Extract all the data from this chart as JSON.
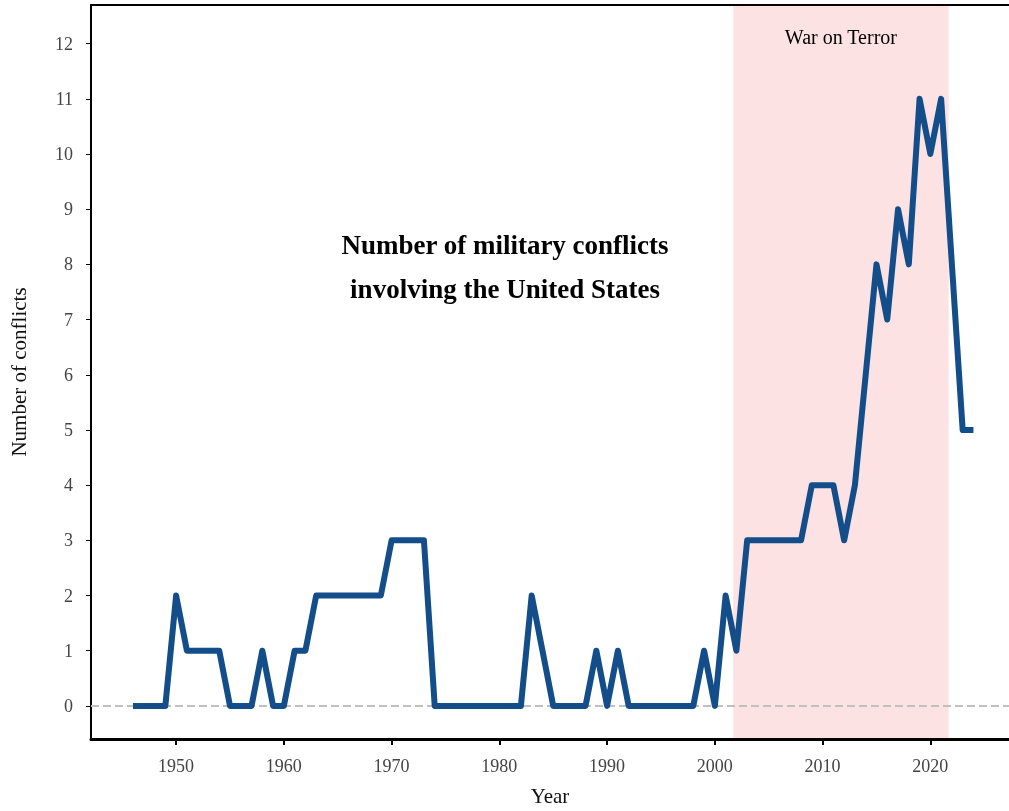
{
  "chart_data": {
    "type": "line",
    "title": "Number of military conflicts\ninvolving the United States",
    "xlabel": "Year",
    "ylabel": "Number of conflicts",
    "x": [
      1946,
      1947,
      1948,
      1949,
      1950,
      1951,
      1952,
      1953,
      1954,
      1955,
      1956,
      1957,
      1958,
      1959,
      1960,
      1961,
      1962,
      1963,
      1964,
      1965,
      1966,
      1967,
      1968,
      1969,
      1970,
      1971,
      1972,
      1973,
      1974,
      1975,
      1976,
      1977,
      1978,
      1979,
      1980,
      1981,
      1982,
      1983,
      1984,
      1985,
      1986,
      1987,
      1988,
      1989,
      1990,
      1991,
      1992,
      1993,
      1994,
      1995,
      1996,
      1997,
      1998,
      1999,
      2000,
      2001,
      2002,
      2003,
      2004,
      2005,
      2006,
      2007,
      2008,
      2009,
      2010,
      2011,
      2012,
      2013,
      2014,
      2015,
      2016,
      2017,
      2018,
      2019,
      2020,
      2021,
      2022,
      2023,
      2024
    ],
    "series": [
      {
        "color": "#134e8a",
        "values": [
          0,
          0,
          0,
          0,
          2,
          1,
          1,
          1,
          1,
          0,
          0,
          0,
          1,
          0,
          0,
          1,
          1,
          2,
          2,
          2,
          2,
          2,
          2,
          2,
          3,
          3,
          3,
          3,
          0,
          0,
          0,
          0,
          0,
          0,
          0,
          0,
          0,
          2,
          1,
          0,
          0,
          0,
          0,
          1,
          0,
          1,
          0,
          0,
          0,
          0,
          0,
          0,
          0,
          1,
          0,
          2,
          1,
          3,
          3,
          3,
          3,
          3,
          3,
          4,
          4,
          4,
          3,
          4,
          6,
          8,
          7,
          9,
          8,
          11,
          10,
          11,
          8,
          5,
          5
        ]
      }
    ],
    "xlim": [
      1942.1,
      2027.3
    ],
    "ylim": [
      -0.6,
      12.7
    ],
    "xticks": [
      1950,
      1960,
      1970,
      1980,
      1990,
      2000,
      2010,
      2020
    ],
    "yticks": [
      0,
      1,
      2,
      3,
      4,
      5,
      6,
      7,
      8,
      9,
      10,
      11,
      12
    ],
    "ref_lines": [
      {
        "axis": "y",
        "value": 0,
        "color": "#c0c0c0",
        "line_style": "dashed"
      }
    ],
    "bands": [
      {
        "axis": "x",
        "from": 2001.7,
        "to": 2021.7,
        "label": "War on Terror",
        "color": "#fde2e4"
      }
    ],
    "grid": false,
    "marker": "none",
    "line_style": "solid"
  }
}
